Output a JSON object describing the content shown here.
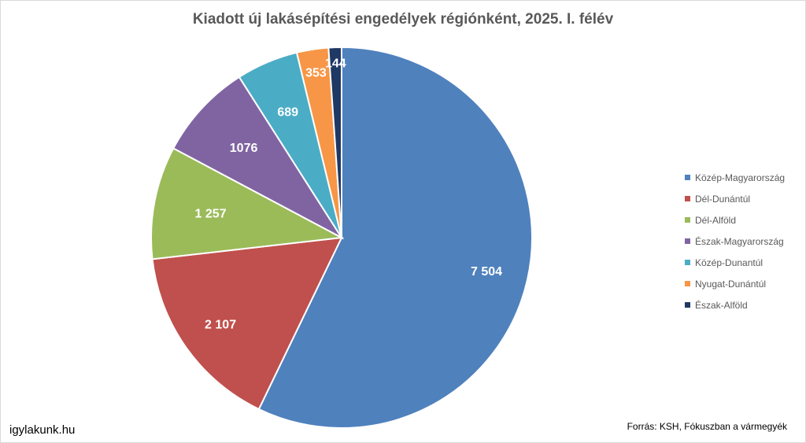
{
  "title": "Kiadott új lakásépítési engedélyek régiónként, 2025. I. félév",
  "site_label": "igylakunk.hu",
  "source_label": "Forrás: KSH, Fókuszban a vármegyék",
  "chart_data": {
    "type": "pie",
    "title": "Kiadott új lakásépítési engedélyek régiónként, 2025. I. félév",
    "legend_position": "right",
    "categories": [
      "Közép-Magyarország",
      "Dél-Dunántúl",
      "Dél-Alföld",
      "Észak-Magyarország",
      "Közép-Dunantúl",
      "Nyugat-Dunántúl",
      "Észak-Alföld"
    ],
    "values": [
      7504,
      2107,
      1257,
      1076,
      689,
      353,
      144
    ],
    "data_labels": [
      "7 504",
      "2 107",
      "1 257",
      "1076",
      "689",
      "353",
      "144"
    ],
    "colors": [
      "#4F81BD",
      "#C0504D",
      "#9BBB59",
      "#8064A2",
      "#4BACC6",
      "#F79646",
      "#1F3864"
    ]
  }
}
